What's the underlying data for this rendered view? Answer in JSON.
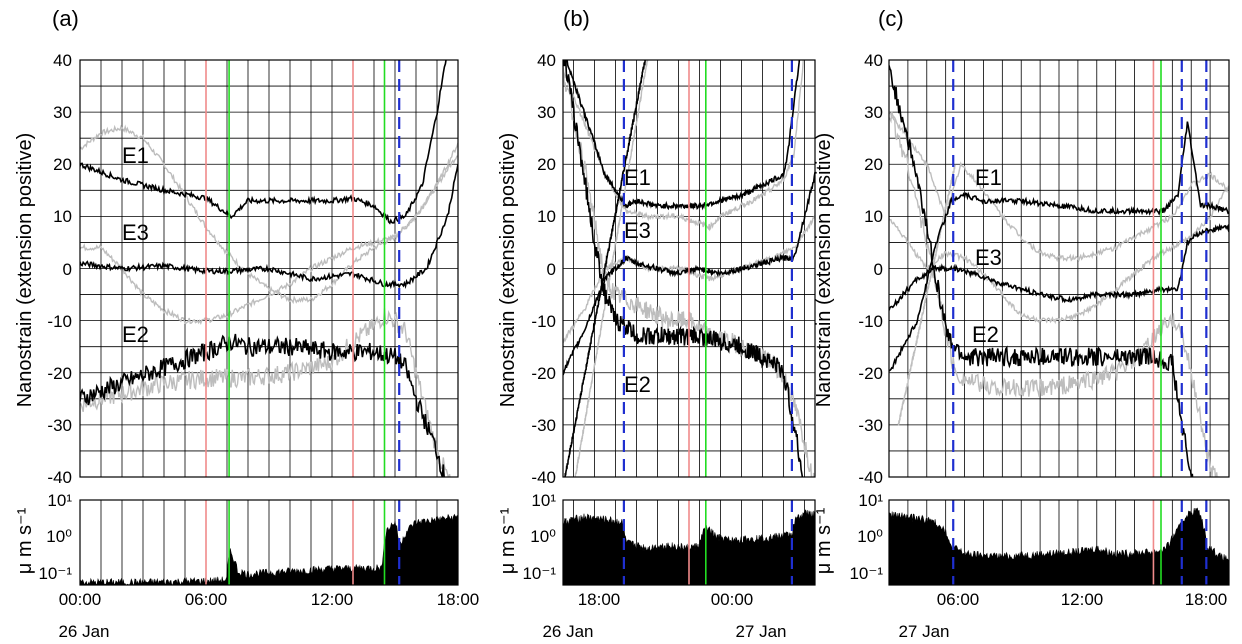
{
  "figure": {
    "ylabel_top": "Nanostrain (extension positive)",
    "ylabel_bottom": "μ m s⁻¹",
    "colors": {
      "black": "#000000",
      "gray": "#bdbdbd",
      "red": "#f08a8a",
      "green": "#22dd22",
      "blue": "#1f2fd0",
      "grid": "#000000"
    }
  },
  "chart_data": [
    {
      "type": "line",
      "panel_label": "(a)",
      "ylim": [
        -40,
        40
      ],
      "yticks": [
        "40",
        "30",
        "20",
        "10",
        "0",
        "-10",
        "-20",
        "-30",
        "-40"
      ],
      "xlim_hours": [
        0,
        18
      ],
      "xticks": [
        {
          "h": 0,
          "label": "00:00"
        },
        {
          "h": 6,
          "label": "06:00"
        },
        {
          "h": 12,
          "label": "12:00"
        },
        {
          "h": 18,
          "label": "18:00"
        }
      ],
      "date_labels": [
        {
          "h": 0,
          "label": "26 Jan"
        }
      ],
      "series": [
        {
          "name": "E1",
          "color": "black",
          "x": [
            0,
            2,
            4,
            6,
            7.2,
            8,
            10,
            12,
            13,
            14,
            14.8,
            15.5,
            16.3,
            17,
            17.5,
            18
          ],
          "y": [
            20,
            17,
            15,
            13.5,
            10,
            13,
            13,
            13,
            13.5,
            12,
            9,
            10,
            16,
            30,
            42,
            45
          ]
        },
        {
          "name": "E1-gray",
          "color": "gray",
          "x": [
            0,
            1,
            2,
            3,
            4,
            5,
            6,
            7,
            8,
            9,
            10,
            11,
            12,
            13,
            14,
            15,
            16,
            17,
            18
          ],
          "y": [
            23,
            26,
            27,
            25,
            20,
            14,
            8,
            3,
            -1,
            -4,
            -6,
            -6,
            -3,
            1,
            4,
            6,
            10,
            16,
            22
          ]
        },
        {
          "name": "E3",
          "color": "black",
          "x": [
            0,
            2,
            4,
            6,
            7,
            9,
            11,
            13,
            14.5,
            15.5,
            16.5,
            17.5,
            18
          ],
          "y": [
            1,
            0,
            0.5,
            -0.5,
            -0.5,
            0,
            -2,
            -1,
            -3,
            -3,
            0,
            10,
            20
          ]
        },
        {
          "name": "E3-gray",
          "color": "gray",
          "x": [
            0,
            1,
            2,
            3,
            4,
            5,
            6,
            7,
            8,
            9,
            10,
            11,
            12,
            13,
            14,
            15,
            16,
            17,
            18
          ],
          "y": [
            4,
            4,
            0,
            -5,
            -8,
            -10,
            -10,
            -9,
            -7,
            -5,
            -3,
            0,
            2,
            4,
            5,
            6,
            10,
            16,
            24
          ]
        },
        {
          "name": "E2",
          "color": "black",
          "x": [
            0,
            2,
            4,
            6,
            7.2,
            8,
            10,
            12,
            14,
            15,
            15.5,
            16,
            16.5,
            17,
            17.5,
            18
          ],
          "y": [
            -25,
            -22,
            -19,
            -16,
            -14,
            -15,
            -15,
            -16,
            -16,
            -17,
            -19,
            -25,
            -30,
            -35,
            -42,
            -45
          ]
        },
        {
          "name": "E2-gray",
          "color": "gray",
          "x": [
            0,
            2,
            4,
            6,
            8,
            10,
            11,
            12,
            13,
            14,
            14.5,
            15,
            15.5,
            16,
            17,
            18
          ],
          "y": [
            -26,
            -24,
            -22,
            -21,
            -21,
            -20,
            -19,
            -18,
            -14,
            -11,
            -9,
            -10,
            -12,
            -20,
            -35,
            -45
          ]
        }
      ],
      "series_labels": [
        {
          "text": "E1",
          "x": 2.1,
          "y": 18
        },
        {
          "text": "E3",
          "x": 2.1,
          "y": 6
        },
        {
          "text": "E2",
          "x": 2.1,
          "y": -13
        }
      ],
      "vlines": [
        {
          "h": 6.0,
          "color": "red",
          "style": "solid"
        },
        {
          "h": 7.1,
          "color": "green",
          "style": "solid"
        },
        {
          "h": 13.0,
          "color": "red",
          "style": "solid"
        },
        {
          "h": 14.5,
          "color": "green",
          "style": "solid"
        },
        {
          "h": 15.2,
          "color": "blue",
          "style": "dashed"
        }
      ],
      "velocity": {
        "yticks": [
          "10¹",
          "10⁰",
          "10⁻¹"
        ],
        "x": [
          0,
          3,
          6,
          7.0,
          7.15,
          7.5,
          8,
          10,
          12,
          14.4,
          14.6,
          15,
          15.2,
          15.6,
          16,
          17,
          18
        ],
        "y": [
          0.06,
          0.06,
          0.065,
          0.07,
          0.4,
          0.12,
          0.1,
          0.12,
          0.14,
          0.15,
          1.5,
          2.5,
          0.5,
          1.5,
          2.5,
          3,
          3.5
        ]
      }
    },
    {
      "type": "line",
      "panel_label": "(b)",
      "ylim": [
        -40,
        40
      ],
      "yticks": [
        "40",
        "30",
        "20",
        "10",
        "0",
        "-10",
        "-20",
        "-30",
        "-40"
      ],
      "xlim_hours": [
        15.5,
        27.5
      ],
      "xticks": [
        {
          "h": 18,
          "label": "18:00"
        },
        {
          "h": 24,
          "label": "00:00"
        }
      ],
      "date_labels": [
        {
          "h": 18,
          "label": "26 Jan"
        },
        {
          "h": 24.5,
          "label": "27 Jan"
        }
      ],
      "series": [
        {
          "name": "E1",
          "color": "black",
          "x": [
            15.5,
            16.5,
            17.5,
            18.5,
            19,
            20,
            21,
            22,
            23,
            24,
            25,
            26,
            26.2,
            26.6,
            27
          ],
          "y": [
            42,
            30,
            18,
            12,
            13,
            12,
            12,
            12,
            13,
            14,
            16,
            18,
            22,
            35,
            48
          ]
        },
        {
          "name": "E1-gray",
          "color": "gray",
          "x": [
            15.5,
            16.5,
            17.5,
            18.5,
            19.5,
            21,
            22.5,
            23,
            24,
            25,
            26,
            26.5,
            27
          ],
          "y": [
            38,
            28,
            18,
            11,
            10,
            10,
            8,
            10,
            12,
            14,
            17,
            22,
            42
          ]
        },
        {
          "name": "E3",
          "color": "black",
          "x": [
            15.5,
            16.5,
            17.5,
            18.5,
            19,
            20,
            21,
            22,
            23,
            24,
            25,
            26,
            26.5,
            27,
            27.5
          ],
          "y": [
            -20,
            -12,
            -2,
            2,
            1,
            0,
            -1,
            0,
            -1,
            0,
            1,
            2,
            2,
            10,
            18
          ]
        },
        {
          "name": "E3-gray",
          "color": "gray",
          "x": [
            15.5,
            16.5,
            17.5,
            18.5,
            19.5,
            21,
            22.5,
            24,
            25.5,
            26.5,
            27.5
          ],
          "y": [
            -14,
            -8,
            0,
            2,
            0,
            0,
            -2,
            0,
            2,
            4,
            10
          ]
        },
        {
          "name": "E2",
          "color": "black",
          "x": [
            15.5,
            16,
            16.5,
            17,
            17.5,
            18,
            18.5,
            19,
            20,
            21,
            22,
            23,
            24,
            25,
            25.5,
            26,
            26.5,
            27
          ],
          "y": [
            42,
            30,
            18,
            5,
            -5,
            -10,
            -11,
            -13,
            -13,
            -13,
            -13,
            -14,
            -15,
            -17,
            -18,
            -20,
            -30,
            -42
          ]
        },
        {
          "name": "E2-gray",
          "color": "gray",
          "x": [
            15.5,
            16.5,
            17.5,
            18,
            18.5,
            19.5,
            20.5,
            21.5,
            22.5,
            23.5,
            24.5,
            25.5,
            26.2,
            26.8,
            27.5
          ],
          "y": [
            38,
            20,
            -2,
            -5,
            -6,
            -8,
            -10,
            -10,
            -13,
            -14,
            -16,
            -18,
            -22,
            -30,
            -42
          ]
        },
        {
          "name": "cross-1",
          "color": "black",
          "x": [
            15.5,
            17.5,
            19.5
          ],
          "y": [
            -42,
            0,
            42
          ]
        },
        {
          "name": "cross-2",
          "color": "gray",
          "x": [
            16,
            17.8,
            19.6
          ],
          "y": [
            -42,
            0,
            42
          ]
        }
      ],
      "series_labels": [
        {
          "text": "E1",
          "x": 19.6,
          "y": 16
        },
        {
          "text": "E3",
          "x": 19.6,
          "y": 6
        },
        {
          "text": "E2",
          "x": 19.6,
          "y": -21
        }
      ],
      "vlines": [
        {
          "h": 18.4,
          "color": "blue",
          "style": "dashed"
        },
        {
          "h": 21.5,
          "color": "red",
          "style": "solid"
        },
        {
          "h": 22.3,
          "color": "green",
          "style": "solid"
        },
        {
          "h": 26.4,
          "color": "blue",
          "style": "dashed"
        }
      ],
      "velocity": {
        "yticks": [
          "10¹",
          "10⁰",
          "10⁻¹"
        ],
        "x": [
          15.5,
          16.5,
          17.5,
          18.3,
          18.5,
          19.5,
          20.5,
          21.5,
          22,
          22.3,
          22.8,
          23.5,
          24.5,
          25.5,
          26.4,
          26.6,
          27,
          27.5
        ],
        "y": [
          2.5,
          3.5,
          3.0,
          2.5,
          0.7,
          0.5,
          0.6,
          0.5,
          0.6,
          1.8,
          1.0,
          0.8,
          0.9,
          1.0,
          1.2,
          3.0,
          4.5,
          4.0
        ]
      }
    },
    {
      "type": "line",
      "panel_label": "(c)",
      "ylim": [
        -40,
        40
      ],
      "yticks": [
        "40",
        "30",
        "20",
        "10",
        "0",
        "-10",
        "-20",
        "-30",
        "-40"
      ],
      "xlim_hours": [
        1,
        19
      ],
      "xticks": [
        {
          "h": 6,
          "label": "06:00"
        },
        {
          "h": 12,
          "label": "12:00"
        },
        {
          "h": 18,
          "label": "18:00"
        }
      ],
      "date_labels": [
        {
          "h": 2.3,
          "label": "27 Jan"
        }
      ],
      "series": [
        {
          "name": "E1",
          "color": "black",
          "x": [
            1,
            2.5,
            3.5,
            4.3,
            5,
            6,
            8,
            10,
            12,
            14,
            15.5,
            16.3,
            16.8,
            17.5,
            18,
            19
          ],
          "y": [
            -20,
            -10,
            5,
            13,
            14,
            13,
            13,
            12,
            11,
            11,
            11,
            14,
            28,
            12,
            12,
            11
          ]
        },
        {
          "name": "E1-gray",
          "color": "gray",
          "x": [
            1,
            2,
            3,
            4,
            4.8,
            6,
            7,
            8,
            9,
            10,
            11,
            12,
            13,
            14,
            15,
            16,
            17,
            18,
            19
          ],
          "y": [
            30,
            25,
            20,
            10,
            20,
            15,
            10,
            6,
            3,
            2,
            2,
            3,
            4,
            6,
            8,
            10,
            16,
            18,
            15
          ]
        },
        {
          "name": "E3",
          "color": "black",
          "x": [
            1,
            2.5,
            3.5,
            4.5,
            5.5,
            7,
            9,
            10.5,
            12,
            14,
            15.5,
            16.3,
            16.8,
            17.5,
            19
          ],
          "y": [
            -8,
            -2,
            0,
            0,
            -1,
            -3,
            -5,
            -6,
            -5,
            -5,
            -4,
            -4,
            5,
            7,
            8
          ]
        },
        {
          "name": "E3-gray",
          "color": "gray",
          "x": [
            1,
            2,
            3,
            4,
            5,
            6,
            7,
            8,
            9,
            10,
            11,
            12,
            13,
            14,
            15,
            16,
            17,
            18,
            19
          ],
          "y": [
            10,
            5,
            0,
            3,
            2,
            -1,
            -5,
            -9,
            -10,
            -10,
            -9,
            -7,
            -4,
            -1,
            2,
            4,
            6,
            10,
            16
          ]
        },
        {
          "name": "E2",
          "color": "black",
          "x": [
            1,
            2,
            3,
            3.8,
            4.2,
            5,
            7,
            9,
            11,
            13,
            15,
            16,
            16.5,
            17,
            17.5,
            18
          ],
          "y": [
            38,
            25,
            8,
            -8,
            -14,
            -17,
            -17,
            -17,
            -17,
            -17,
            -17,
            -18,
            -30,
            -40,
            -45,
            -45
          ]
        },
        {
          "name": "E2-gray",
          "color": "gray",
          "x": [
            1,
            2,
            3,
            4,
            4.5,
            5.5,
            7,
            9,
            11,
            13,
            14.5,
            15.5,
            16.3,
            17,
            18,
            19
          ],
          "y": [
            30,
            20,
            5,
            -12,
            -20,
            -22,
            -23,
            -23,
            -22,
            -20,
            -16,
            -11,
            -10,
            -20,
            -38,
            -45
          ]
        },
        {
          "name": "cross-3",
          "color": "gray",
          "x": [
            1.5,
            3,
            4.5
          ],
          "y": [
            -30,
            -5,
            20
          ]
        }
      ],
      "series_labels": [
        {
          "text": "E1",
          "x": 8.5,
          "y": 18
        },
        {
          "text": "E3",
          "x": 8.5,
          "y": 1
        },
        {
          "text": "E2",
          "x": 8.3,
          "y": -16
        }
      ],
      "vlines": [
        {
          "h": 4.4,
          "color": "blue",
          "style": "dashed"
        },
        {
          "h": 15.0,
          "color": "red",
          "style": "solid"
        },
        {
          "h": 15.4,
          "color": "green",
          "style": "solid"
        },
        {
          "h": 16.5,
          "color": "blue",
          "style": "dashed"
        },
        {
          "h": 17.8,
          "color": "blue",
          "style": "dashed"
        }
      ],
      "velocity": {
        "yticks": [
          "10¹",
          "10⁰",
          "10⁻¹"
        ],
        "x": [
          1,
          2,
          3,
          3.8,
          4.2,
          5,
          7,
          9,
          11,
          12,
          13,
          15,
          15.5,
          15.8,
          16.3,
          16.8,
          17.3,
          17.8,
          18.5,
          19
        ],
        "y": [
          4.0,
          3.5,
          3.0,
          2.0,
          0.6,
          0.35,
          0.3,
          0.35,
          0.4,
          0.5,
          0.35,
          0.4,
          0.45,
          0.6,
          1.5,
          4.0,
          5.5,
          0.6,
          0.3,
          0.25
        ]
      }
    }
  ]
}
